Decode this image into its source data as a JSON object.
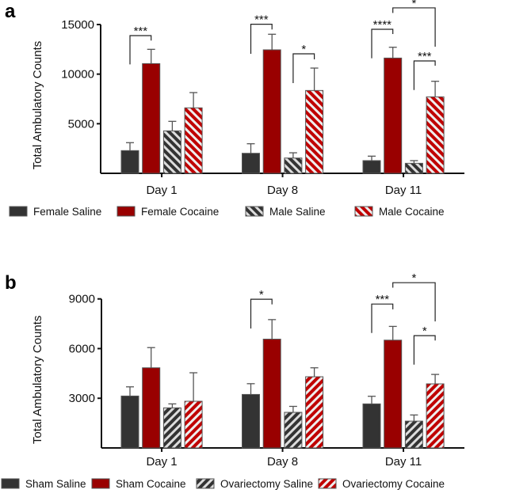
{
  "chart_data": [
    {
      "type": "bar",
      "panel": "a",
      "ylabel": "Total Ambulatory Counts",
      "categories": [
        "Day 1",
        "Day 8",
        "Day 11"
      ],
      "ylim": [
        0,
        15000
      ],
      "yticks": [
        5000,
        10000,
        15000
      ],
      "legend_position": "bottom",
      "series": [
        {
          "name": "Female Saline",
          "color": "#333333",
          "hatch": false,
          "values": [
            2290,
            2020,
            1280
          ],
          "error_upper": [
            3090,
            2980,
            1730
          ]
        },
        {
          "name": "Female Cocaine",
          "color": "#990000",
          "hatch": false,
          "values": [
            11060,
            12450,
            11620
          ],
          "error_upper": [
            12500,
            14020,
            12710
          ]
        },
        {
          "name": "Male Saline",
          "color": "#333333",
          "hatch": true,
          "values": [
            4280,
            1540,
            1010
          ],
          "error_upper": [
            5240,
            2070,
            1280
          ]
        },
        {
          "name": "Male Cocaine",
          "color": "#c00000",
          "hatch": true,
          "values": [
            6600,
            8350,
            7710
          ],
          "error_upper": [
            8140,
            10610,
            9280
          ]
        }
      ],
      "significance": [
        {
          "group": 0,
          "from": 0,
          "to": 1,
          "label": "***",
          "level": 13880,
          "left_end": 10980,
          "right_end": 13380
        },
        {
          "group": 1,
          "from": 0,
          "to": 1,
          "label": "***",
          "level": 15030,
          "left_end": 12050,
          "right_end": 14500
        },
        {
          "group": 1,
          "from": 2,
          "to": 3,
          "label": "*",
          "level": 12050,
          "left_end": 9100,
          "right_end": 11490
        },
        {
          "group": 2,
          "from": 0,
          "to": 1,
          "label": "****",
          "level": 14520,
          "left_end": 11600,
          "right_end": 14040
        },
        {
          "group": 2,
          "from": 1,
          "to": 3,
          "label": "*",
          "level": 16680,
          "left_end": 16170,
          "right_end": 12770
        },
        {
          "group": 2,
          "from": 2,
          "to": 3,
          "label": "***",
          "level": 11330,
          "left_end": 8400,
          "right_end": 10850
        }
      ]
    },
    {
      "type": "bar",
      "panel": "b",
      "ylabel": "Total Ambulatory Counts",
      "categories": [
        "Day 1",
        "Day 8",
        "Day 11"
      ],
      "ylim": [
        0,
        9000
      ],
      "yticks": [
        3000,
        6000,
        9000
      ],
      "legend_position": "bottom",
      "series": [
        {
          "name": "Sham Saline",
          "color": "#333333",
          "hatch": false,
          "values": [
            3135,
            3230,
            2660
          ],
          "error_upper": [
            3690,
            3880,
            3120
          ]
        },
        {
          "name": "Sham Cocaine",
          "color": "#990000",
          "hatch": false,
          "values": [
            4840,
            6570,
            6510
          ],
          "error_upper": [
            6060,
            7750,
            7340
          ]
        },
        {
          "name": "Ovariectomy Saline",
          "color": "#333333",
          "hatch": true,
          "values": [
            2420,
            2150,
            1620
          ],
          "error_upper": [
            2660,
            2510,
            1990
          ]
        },
        {
          "name": "Ovariectomy Cocaine",
          "color": "#c00000",
          "hatch": true,
          "values": [
            2820,
            4300,
            3870
          ],
          "error_upper": [
            4540,
            4840,
            4440
          ]
        }
      ],
      "significance": [
        {
          "group": 1,
          "from": 0,
          "to": 1,
          "label": "*",
          "level": 8980,
          "left_end": 7210,
          "right_end": 8670
        },
        {
          "group": 2,
          "from": 0,
          "to": 1,
          "label": "***",
          "level": 8690,
          "left_end": 6940,
          "right_end": 8370
        },
        {
          "group": 2,
          "from": 1,
          "to": 3,
          "label": "*",
          "level": 9980,
          "left_end": 9680,
          "right_end": 7640
        },
        {
          "group": 2,
          "from": 2,
          "to": 3,
          "label": "*",
          "level": 6780,
          "left_end": 5030,
          "right_end": 6490
        }
      ]
    }
  ]
}
